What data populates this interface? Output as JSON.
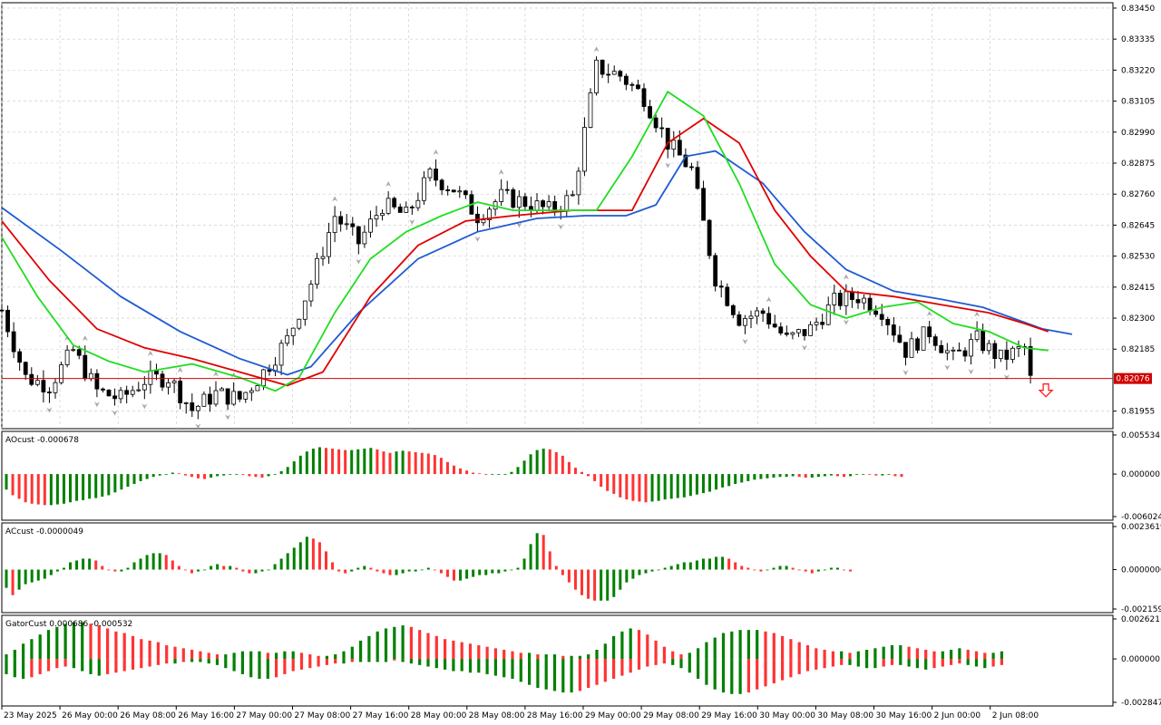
{
  "colors": {
    "bull_histogram": "#008000",
    "bear_histogram": "#ff3333",
    "jaw": "#1f5bd1",
    "teeth": "#e00000",
    "lips": "#22dd22",
    "price_line": "#d00000",
    "grid": "#c8c8c8",
    "candle": "#000000",
    "fractal": "#a8a8a8",
    "signal_arrow": "#ff2020",
    "price_badge_bg": "#d00000",
    "price_badge_text": "#ffffff"
  },
  "chart_data": [
    {
      "type": "candlestick",
      "name": "main",
      "y_ticks": [
        "0.83450",
        "0.83335",
        "0.83220",
        "0.83105",
        "0.82990",
        "0.82875",
        "0.82760",
        "0.82645",
        "0.82530",
        "0.82415",
        "0.82300",
        "0.82185",
        "0.81955"
      ],
      "ylim": [
        0.8189,
        0.8347
      ],
      "current_price": "0.82076",
      "grid": true,
      "x_tick_labels": [
        "23 May 2025",
        "26 May 00:00",
        "26 May 08:00",
        "26 May 16:00",
        "27 May 00:00",
        "27 May 08:00",
        "27 May 16:00",
        "28 May 00:00",
        "28 May 08:00",
        "28 May 16:00",
        "29 May 00:00",
        "29 May 08:00",
        "29 May 16:00",
        "30 May 00:00",
        "30 May 08:00",
        "30 May 16:00",
        "2 Jun 00:00",
        "2 Jun 08:00"
      ],
      "close_path": [
        [
          0,
          0.8233
        ],
        [
          4,
          0.8208
        ],
        [
          8,
          0.8205
        ],
        [
          12,
          0.8218
        ],
        [
          16,
          0.8203
        ],
        [
          20,
          0.82
        ],
        [
          24,
          0.8207
        ],
        [
          28,
          0.8208
        ],
        [
          32,
          0.8196
        ],
        [
          36,
          0.8202
        ],
        [
          40,
          0.82
        ],
        [
          44,
          0.821
        ],
        [
          48,
          0.8222
        ],
        [
          52,
          0.8243
        ],
        [
          56,
          0.8268
        ],
        [
          60,
          0.8258
        ],
        [
          64,
          0.8272
        ],
        [
          68,
          0.8268
        ],
        [
          72,
          0.8283
        ],
        [
          76,
          0.8278
        ],
        [
          80,
          0.8268
        ],
        [
          84,
          0.8275
        ],
        [
          88,
          0.8273
        ],
        [
          92,
          0.827
        ],
        [
          96,
          0.8275
        ],
        [
          100,
          0.8323
        ],
        [
          104,
          0.832
        ],
        [
          108,
          0.8312
        ],
        [
          112,
          0.8295
        ],
        [
          116,
          0.8285
        ],
        [
          120,
          0.8245
        ],
        [
          124,
          0.823
        ],
        [
          128,
          0.8232
        ],
        [
          132,
          0.8222
        ],
        [
          136,
          0.8226
        ],
        [
          140,
          0.8236
        ],
        [
          144,
          0.8238
        ],
        [
          148,
          0.8233
        ],
        [
          152,
          0.8218
        ],
        [
          156,
          0.8225
        ],
        [
          160,
          0.8215
        ],
        [
          164,
          0.8222
        ],
        [
          168,
          0.8215
        ],
        [
          172,
          0.8219
        ],
        [
          173,
          0.8207
        ]
      ],
      "x_range": [
        0,
        180
      ],
      "jaw": [
        [
          0,
          0.8271
        ],
        [
          10,
          0.8255
        ],
        [
          20,
          0.8238
        ],
        [
          30,
          0.8225
        ],
        [
          40,
          0.8215
        ],
        [
          48,
          0.8209
        ],
        [
          52,
          0.8212
        ],
        [
          60,
          0.8232
        ],
        [
          70,
          0.8252
        ],
        [
          80,
          0.8262
        ],
        [
          90,
          0.8267
        ],
        [
          98,
          0.8268
        ],
        [
          105,
          0.8268
        ],
        [
          110,
          0.8272
        ],
        [
          115,
          0.829
        ],
        [
          120,
          0.8292
        ],
        [
          128,
          0.828
        ],
        [
          135,
          0.8262
        ],
        [
          142,
          0.8248
        ],
        [
          150,
          0.824
        ],
        [
          158,
          0.8237
        ],
        [
          165,
          0.8234
        ],
        [
          170,
          0.823
        ],
        [
          175,
          0.8226
        ],
        [
          180,
          0.8224
        ]
      ],
      "teeth": [
        [
          0,
          0.8266
        ],
        [
          8,
          0.8244
        ],
        [
          16,
          0.8226
        ],
        [
          24,
          0.8219
        ],
        [
          32,
          0.8215
        ],
        [
          40,
          0.821
        ],
        [
          48,
          0.8205
        ],
        [
          54,
          0.821
        ],
        [
          62,
          0.8238
        ],
        [
          70,
          0.8257
        ],
        [
          78,
          0.8266
        ],
        [
          86,
          0.8268
        ],
        [
          96,
          0.827
        ],
        [
          106,
          0.827
        ],
        [
          112,
          0.8295
        ],
        [
          118,
          0.8304
        ],
        [
          124,
          0.8295
        ],
        [
          130,
          0.827
        ],
        [
          136,
          0.8253
        ],
        [
          142,
          0.824
        ],
        [
          150,
          0.8238
        ],
        [
          158,
          0.8235
        ],
        [
          166,
          0.8232
        ],
        [
          172,
          0.8228
        ],
        [
          176,
          0.8225
        ]
      ],
      "lips": [
        [
          0,
          0.826
        ],
        [
          6,
          0.8238
        ],
        [
          12,
          0.822
        ],
        [
          18,
          0.8214
        ],
        [
          24,
          0.821
        ],
        [
          32,
          0.8213
        ],
        [
          40,
          0.8208
        ],
        [
          46,
          0.8203
        ],
        [
          50,
          0.8208
        ],
        [
          56,
          0.8232
        ],
        [
          62,
          0.8252
        ],
        [
          68,
          0.8262
        ],
        [
          74,
          0.8268
        ],
        [
          80,
          0.8273
        ],
        [
          86,
          0.827
        ],
        [
          96,
          0.827
        ],
        [
          100,
          0.827
        ],
        [
          106,
          0.829
        ],
        [
          112,
          0.8314
        ],
        [
          118,
          0.8305
        ],
        [
          124,
          0.828
        ],
        [
          130,
          0.825
        ],
        [
          136,
          0.8235
        ],
        [
          142,
          0.823
        ],
        [
          148,
          0.8234
        ],
        [
          154,
          0.8236
        ],
        [
          160,
          0.8228
        ],
        [
          166,
          0.8225
        ],
        [
          172,
          0.8219
        ],
        [
          176,
          0.8218
        ]
      ]
    },
    {
      "type": "bar",
      "name": "AOcust",
      "label": "AOcust -0.000678",
      "y_ticks": [
        "0.005534",
        "0.000000",
        "-0.006024"
      ],
      "ylim": [
        -0.006024,
        0.005534
      ],
      "values": [
        -0.0022,
        -0.003,
        -0.0035,
        -0.004,
        -0.0042,
        -0.0043,
        -0.0044,
        -0.0044,
        -0.0043,
        -0.0042,
        -0.004,
        -0.0038,
        -0.0037,
        -0.0035,
        -0.0034,
        -0.0032,
        -0.003,
        -0.0026,
        -0.0022,
        -0.0018,
        -0.0014,
        -0.001,
        -0.0007,
        -0.0004,
        -0.0002,
        0.0,
        0.0002,
        0.0001,
        -0.0002,
        -0.0004,
        -0.0006,
        -0.0007,
        -0.0005,
        -0.0003,
        -0.0002,
        -0.0001,
        0.0,
        -0.0001,
        -0.0003,
        -0.0004,
        -0.0005,
        -0.0003,
        -0.0001,
        0.0004,
        0.001,
        0.0018,
        0.0026,
        0.0032,
        0.0036,
        0.0038,
        0.0037,
        0.0036,
        0.0035,
        0.0034,
        0.0034,
        0.0035,
        0.0036,
        0.0037,
        0.0035,
        0.0032,
        0.003,
        0.0032,
        0.0033,
        0.0032,
        0.0031,
        0.003,
        0.0029,
        0.0027,
        0.0023,
        0.0017,
        0.0012,
        0.0008,
        0.0005,
        0.0002,
        0.0001,
        0.0,
        0.0,
        0.0,
        0.0,
        0.0003,
        0.001,
        0.0019,
        0.0028,
        0.0034,
        0.0036,
        0.0035,
        0.0031,
        0.0026,
        0.0017,
        0.0009,
        0.0003,
        -0.0003,
        -0.001,
        -0.0018,
        -0.0024,
        -0.0028,
        -0.0033,
        -0.0036,
        -0.0038,
        -0.0039,
        -0.004,
        -0.0039,
        -0.0038,
        -0.0036,
        -0.0035,
        -0.0034,
        -0.0033,
        -0.0031,
        -0.0029,
        -0.0027,
        -0.0025,
        -0.0022,
        -0.0019,
        -0.0017,
        -0.0014,
        -0.0012,
        -0.001,
        -0.0008,
        -0.0007,
        -0.0006,
        -0.0005,
        -0.0004,
        -0.0004,
        -0.0003,
        -0.0004,
        -0.0005,
        -0.0005,
        -0.0004,
        -0.0003,
        -0.0002,
        -0.0003,
        -0.0004,
        -0.0003,
        -0.0001,
        0.0,
        -0.0001,
        -0.0002,
        -0.0002,
        -0.0001,
        -0.0003,
        -0.0004
      ]
    },
    {
      "type": "bar",
      "name": "ACcust",
      "label": "ACcust -0.0000049",
      "y_ticks": [
        "0.0023619",
        "0.0000000",
        "-0.0021594"
      ],
      "ylim": [
        -0.0021594,
        0.0023619
      ],
      "values": [
        -0.001,
        -0.0014,
        -0.0011,
        -0.0008,
        -0.0007,
        -0.0006,
        -0.0005,
        -0.0003,
        -0.0001,
        0.0001,
        0.0004,
        0.0005,
        0.0006,
        0.0006,
        0.0005,
        0.0002,
        0.0,
        -0.0001,
        -0.0001,
        0.0001,
        0.0004,
        0.0006,
        0.0008,
        0.0009,
        0.0009,
        0.0008,
        0.0005,
        0.0002,
        0.0,
        -0.0002,
        -0.0001,
        0.0,
        0.0002,
        0.0003,
        0.0002,
        0.0002,
        0.0001,
        -0.0001,
        -0.0002,
        -0.0002,
        -0.0001,
        0.0,
        0.0003,
        0.0006,
        0.0009,
        0.0012,
        0.0015,
        0.0018,
        0.0017,
        0.0015,
        0.001,
        0.0004,
        -0.0001,
        -0.0002,
        -0.0001,
        0.0001,
        0.0002,
        0.0001,
        -0.0001,
        -0.0002,
        -0.0003,
        -0.0003,
        -0.0002,
        -0.0001,
        -0.0001,
        0.0,
        0.0001,
        0.0,
        -0.0002,
        -0.0004,
        -0.0006,
        -0.0006,
        -0.0005,
        -0.0004,
        -0.0003,
        -0.0003,
        -0.0002,
        -0.0002,
        -0.0001,
        0.0,
        0.0001,
        0.0006,
        0.0014,
        0.002,
        0.0019,
        0.001,
        0.0002,
        -0.0003,
        -0.0007,
        -0.0011,
        -0.0014,
        -0.0016,
        -0.0017,
        -0.0017,
        -0.0017,
        -0.0015,
        -0.0011,
        -0.0007,
        -0.0005,
        -0.0003,
        -0.0002,
        -0.0001,
        0.0,
        0.0001,
        0.0002,
        0.0003,
        0.0004,
        0.0004,
        0.0005,
        0.0006,
        0.0006,
        0.0007,
        0.0007,
        0.0006,
        0.0004,
        0.0002,
        0.0001,
        0.0,
        -0.0001,
        0.0,
        0.0001,
        0.0002,
        0.0002,
        0.0001,
        0.0,
        -0.0001,
        -0.0002,
        -0.0001,
        0.0,
        0.0001,
        0.0001,
        0.0,
        -0.0001
      ]
    },
    {
      "type": "bar",
      "name": "GatorCust",
      "label": "GatorCust 0.000686 -0.000532",
      "y_ticks": [
        "0.002621",
        "0.000000",
        "-0.002847"
      ],
      "ylim": [
        -0.002847,
        0.002621
      ],
      "upper": [
        0.0003,
        0.0006,
        0.001,
        0.0013,
        0.0016,
        0.0019,
        0.0021,
        0.0023,
        0.0024,
        0.0024,
        0.0023,
        0.0022,
        0.002,
        0.0018,
        0.0017,
        0.0015,
        0.0013,
        0.0012,
        0.0011,
        0.0009,
        0.0008,
        0.0007,
        0.0006,
        0.0005,
        0.0004,
        0.0003,
        0.0003,
        0.0004,
        0.0005,
        0.0005,
        0.0005,
        0.0004,
        0.0004,
        0.0005,
        0.0005,
        0.0004,
        0.0003,
        0.0002,
        0.0002,
        0.0003,
        0.0005,
        0.0008,
        0.0012,
        0.0015,
        0.0018,
        0.002,
        0.0021,
        0.0022,
        0.0021,
        0.0019,
        0.0017,
        0.0015,
        0.0013,
        0.0012,
        0.0011,
        0.001,
        0.0009,
        0.0008,
        0.0007,
        0.0006,
        0.0005,
        0.0004,
        0.0004,
        0.0003,
        0.0003,
        0.0003,
        0.0002,
        0.0002,
        0.0002,
        0.0003,
        0.0006,
        0.001,
        0.0015,
        0.0018,
        0.002,
        0.0019,
        0.0016,
        0.0012,
        0.0008,
        0.0005,
        0.0003,
        0.0004,
        0.0007,
        0.0011,
        0.0014,
        0.0017,
        0.0018,
        0.0019,
        0.0019,
        0.0019,
        0.0018,
        0.0017,
        0.0015,
        0.0013,
        0.0011,
        0.0009,
        0.0007,
        0.0006,
        0.0005,
        0.0005,
        0.0004,
        0.0005,
        0.0006,
        0.0007,
        0.0008,
        0.0009,
        0.0009,
        0.0008,
        0.0007,
        0.0006,
        0.0005,
        0.0005,
        0.0006,
        0.0007,
        0.0006,
        0.0005,
        0.0004,
        0.0004,
        0.0005
      ],
      "lower": [
        -0.001,
        -0.0012,
        -0.0013,
        -0.0012,
        -0.001,
        -0.0008,
        -0.0006,
        -0.0005,
        -0.0006,
        -0.0008,
        -0.001,
        -0.0011,
        -0.001,
        -0.0009,
        -0.0008,
        -0.0007,
        -0.0006,
        -0.0005,
        -0.0004,
        -0.0003,
        -0.0003,
        -0.0002,
        -0.0002,
        -0.0002,
        -0.0003,
        -0.0004,
        -0.0006,
        -0.0008,
        -0.001,
        -0.0012,
        -0.0013,
        -0.0013,
        -0.0012,
        -0.001,
        -0.0008,
        -0.0007,
        -0.0006,
        -0.0005,
        -0.0004,
        -0.0003,
        -0.0003,
        -0.0002,
        -0.0002,
        -0.0002,
        -0.0002,
        -0.0002,
        -0.0001,
        -0.0002,
        -0.0003,
        -0.0004,
        -0.0005,
        -0.0006,
        -0.0007,
        -0.0008,
        -0.0008,
        -0.0009,
        -0.0009,
        -0.001,
        -0.0011,
        -0.0012,
        -0.0013,
        -0.0015,
        -0.0017,
        -0.0019,
        -0.002,
        -0.0021,
        -0.0022,
        -0.0022,
        -0.0021,
        -0.0019,
        -0.0017,
        -0.0015,
        -0.0013,
        -0.0011,
        -0.0009,
        -0.0007,
        -0.0005,
        -0.0004,
        -0.0003,
        -0.0004,
        -0.0006,
        -0.0009,
        -0.0013,
        -0.0017,
        -0.002,
        -0.0022,
        -0.0023,
        -0.0023,
        -0.0022,
        -0.002,
        -0.0018,
        -0.0016,
        -0.0014,
        -0.0012,
        -0.001,
        -0.0008,
        -0.0007,
        -0.0006,
        -0.0005,
        -0.0004,
        -0.0004,
        -0.0005,
        -0.0006,
        -0.0006,
        -0.0005,
        -0.0004,
        -0.0004,
        -0.0005,
        -0.0006,
        -0.0007,
        -0.0006,
        -0.0005,
        -0.0004,
        -0.0003,
        -0.0004,
        -0.0005,
        -0.0006,
        -0.0005,
        -0.0004
      ]
    }
  ]
}
